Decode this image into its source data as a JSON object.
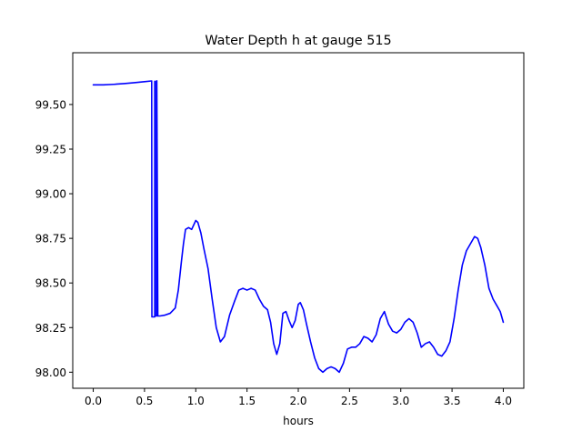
{
  "chart_data": {
    "type": "line",
    "title": "Water Depth h at gauge 515",
    "xlabel": "hours",
    "ylabel": "",
    "xlim": [
      -0.2,
      4.2
    ],
    "ylim": [
      97.91,
      99.79
    ],
    "xticks": [
      0.0,
      0.5,
      1.0,
      1.5,
      2.0,
      2.5,
      3.0,
      3.5,
      4.0
    ],
    "xtick_labels": [
      "0.0",
      "0.5",
      "1.0",
      "1.5",
      "2.0",
      "2.5",
      "3.0",
      "3.5",
      "4.0"
    ],
    "yticks": [
      98.0,
      98.25,
      98.5,
      98.75,
      99.0,
      99.25,
      99.5
    ],
    "ytick_labels": [
      "98.00",
      "98.25",
      "98.50",
      "98.75",
      "99.00",
      "99.25",
      "99.50"
    ],
    "grid": false,
    "series": [
      {
        "color": "#0000ff",
        "x": [
          0.0,
          0.1,
          0.2,
          0.3,
          0.4,
          0.5,
          0.57,
          0.572,
          0.58,
          0.6,
          0.6,
          0.605,
          0.605,
          0.62,
          0.62,
          0.63,
          0.65,
          0.7,
          0.75,
          0.8,
          0.83,
          0.86,
          0.88,
          0.9,
          0.93,
          0.96,
          1.0,
          1.02,
          1.05,
          1.08,
          1.12,
          1.16,
          1.2,
          1.24,
          1.28,
          1.33,
          1.38,
          1.42,
          1.46,
          1.5,
          1.54,
          1.58,
          1.62,
          1.66,
          1.7,
          1.73,
          1.76,
          1.79,
          1.82,
          1.85,
          1.88,
          1.91,
          1.94,
          1.97,
          2.0,
          2.02,
          2.05,
          2.08,
          2.12,
          2.16,
          2.2,
          2.24,
          2.28,
          2.32,
          2.36,
          2.4,
          2.44,
          2.48,
          2.52,
          2.56,
          2.6,
          2.64,
          2.68,
          2.72,
          2.76,
          2.8,
          2.84,
          2.88,
          2.92,
          2.96,
          3.0,
          3.04,
          3.08,
          3.12,
          3.16,
          3.2,
          3.24,
          3.28,
          3.32,
          3.36,
          3.4,
          3.44,
          3.48,
          3.52,
          3.56,
          3.6,
          3.64,
          3.68,
          3.72,
          3.75,
          3.78,
          3.82,
          3.86,
          3.9,
          3.94,
          3.97,
          4.0
        ],
        "y": [
          99.61,
          99.61,
          99.613,
          99.617,
          99.622,
          99.628,
          99.632,
          98.31,
          98.31,
          98.31,
          99.63,
          99.63,
          98.315,
          98.315,
          99.633,
          98.315,
          98.315,
          98.32,
          98.33,
          98.36,
          98.46,
          98.62,
          98.72,
          98.8,
          98.81,
          98.8,
          98.85,
          98.84,
          98.78,
          98.69,
          98.58,
          98.41,
          98.25,
          98.17,
          98.2,
          98.32,
          98.4,
          98.46,
          98.47,
          98.46,
          98.47,
          98.46,
          98.41,
          98.37,
          98.35,
          98.28,
          98.16,
          98.1,
          98.16,
          98.33,
          98.34,
          98.29,
          98.25,
          98.29,
          98.38,
          98.39,
          98.35,
          98.27,
          98.17,
          98.08,
          98.02,
          98.0,
          98.02,
          98.03,
          98.02,
          98.0,
          98.05,
          98.13,
          98.14,
          98.14,
          98.16,
          98.2,
          98.19,
          98.17,
          98.21,
          98.3,
          98.34,
          98.27,
          98.23,
          98.22,
          98.24,
          98.28,
          98.3,
          98.28,
          98.22,
          98.14,
          98.16,
          98.17,
          98.14,
          98.1,
          98.09,
          98.12,
          98.17,
          98.3,
          98.46,
          98.6,
          98.68,
          98.72,
          98.76,
          98.75,
          98.7,
          98.6,
          98.47,
          98.41,
          98.37,
          98.34,
          98.28
        ]
      }
    ]
  }
}
